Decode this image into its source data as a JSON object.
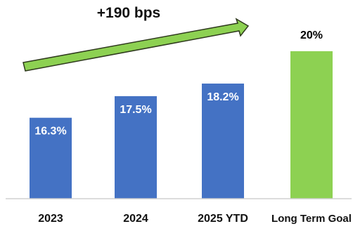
{
  "chart_data": {
    "type": "bar",
    "categories": [
      "2023",
      "2024",
      "2025 YTD",
      "Long Term Goal"
    ],
    "values": [
      16.3,
      17.5,
      18.2,
      20
    ],
    "data_labels": [
      "16.3%",
      "17.5%",
      "18.2%",
      "20%"
    ],
    "bar_colors": [
      "#4472c4",
      "#4472c4",
      "#4472c4",
      "#8dd152"
    ],
    "label_colors": [
      "#ffffff",
      "#ffffff",
      "#ffffff",
      "#000000"
    ],
    "annotation": "+190 bps",
    "arrow_color": "#8dd152",
    "ylim": [
      11.8,
      20.8
    ],
    "grid": false,
    "legend": "none"
  }
}
